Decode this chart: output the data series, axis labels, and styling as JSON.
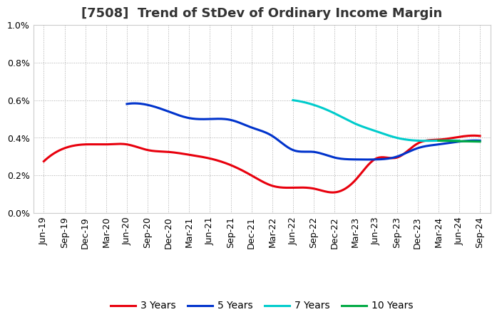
{
  "title": "[7508]  Trend of StDev of Ordinary Income Margin",
  "ylim": [
    0.0,
    0.01
  ],
  "yticks": [
    0.0,
    0.002,
    0.004,
    0.006,
    0.008,
    0.01
  ],
  "ytick_labels": [
    "0.0%",
    "0.2%",
    "0.4%",
    "0.6%",
    "0.8%",
    "1.0%"
  ],
  "x_labels": [
    "Jun-19",
    "Sep-19",
    "Dec-19",
    "Mar-20",
    "Jun-20",
    "Sep-20",
    "Dec-20",
    "Mar-21",
    "Jun-21",
    "Sep-21",
    "Dec-21",
    "Mar-22",
    "Jun-22",
    "Sep-22",
    "Dec-22",
    "Mar-23",
    "Jun-23",
    "Sep-23",
    "Dec-23",
    "Mar-24",
    "Jun-24",
    "Sep-24"
  ],
  "series_3y": [
    0.00275,
    0.00345,
    0.00365,
    0.00365,
    0.00365,
    0.00335,
    0.00325,
    0.0031,
    0.0029,
    0.00255,
    0.002,
    0.00145,
    0.00135,
    0.0013,
    0.0011,
    0.00175,
    0.0029,
    0.00295,
    0.0037,
    0.0039,
    0.00405,
    0.0041
  ],
  "series_5y": [
    null,
    null,
    null,
    null,
    0.0058,
    0.00575,
    0.0054,
    0.00505,
    0.005,
    0.00495,
    0.00455,
    0.0041,
    0.00335,
    0.00325,
    0.00295,
    0.00285,
    0.00285,
    0.003,
    0.00345,
    0.00365,
    0.0038,
    0.00385
  ],
  "series_7y": [
    null,
    null,
    null,
    null,
    null,
    null,
    null,
    null,
    null,
    null,
    null,
    null,
    0.006,
    0.00575,
    0.0053,
    0.00475,
    0.00435,
    0.004,
    0.00385,
    0.00385,
    0.00385,
    null
  ],
  "series_10y": [
    null,
    null,
    null,
    null,
    null,
    null,
    null,
    null,
    null,
    null,
    null,
    null,
    null,
    null,
    null,
    null,
    null,
    null,
    null,
    0.00385,
    0.00382,
    0.0038
  ],
  "color_3y": "#e8000d",
  "color_5y": "#0033cc",
  "color_7y": "#00cccc",
  "color_10y": "#00aa44",
  "legend_labels": [
    "3 Years",
    "5 Years",
    "7 Years",
    "10 Years"
  ],
  "background_color": "#ffffff",
  "plot_bg_color": "#ffffff",
  "grid_color": "#aaaaaa",
  "line_width": 2.2,
  "title_fontsize": 13,
  "tick_fontsize": 9
}
